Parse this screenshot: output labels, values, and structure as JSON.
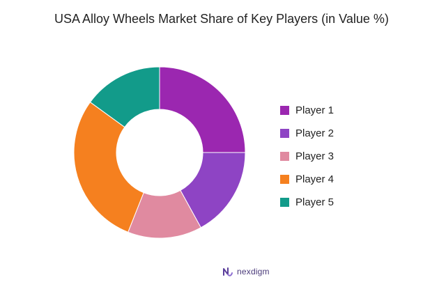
{
  "chart_data": {
    "type": "pie",
    "title": "USA Alloy Wheels Market Share of Key Players (in Value %)",
    "donut": true,
    "legend_position": "right",
    "categories": [
      "Player 1",
      "Player 2",
      "Player 3",
      "Player 4",
      "Player 5"
    ],
    "values": [
      25,
      17,
      14,
      29,
      15
    ],
    "colors": [
      "#9b27b0",
      "#8e44c4",
      "#e08aa0",
      "#f5801f",
      "#129b8a"
    ]
  },
  "brand": {
    "name": "nexdigm",
    "logo_icon": "nexdigm-logo-icon"
  }
}
